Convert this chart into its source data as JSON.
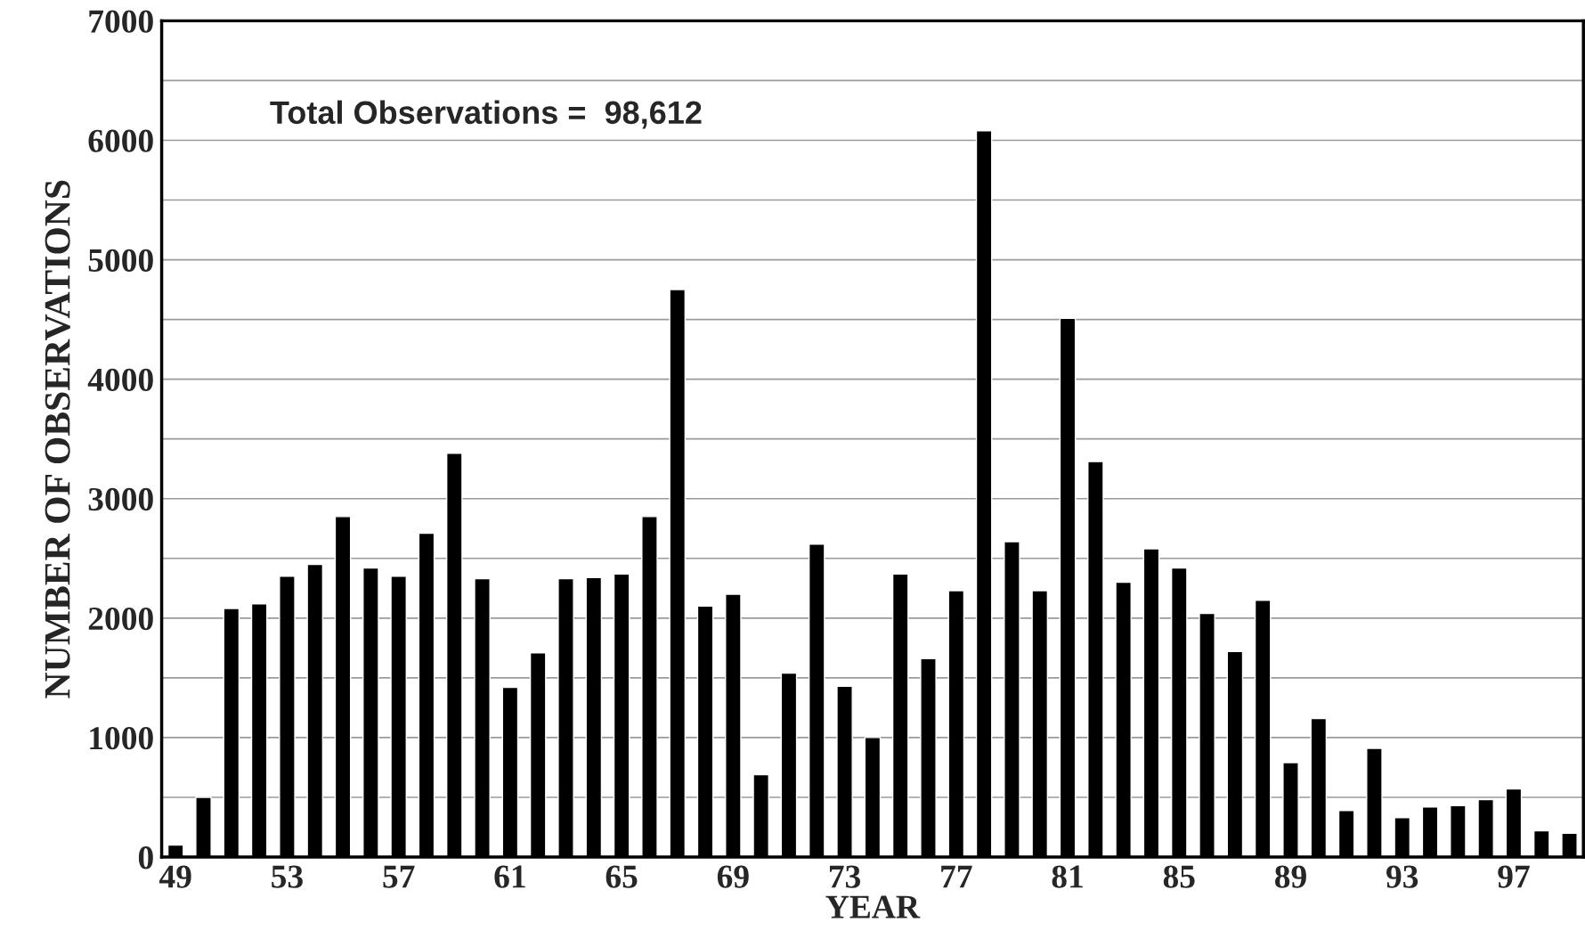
{
  "chart_data": {
    "type": "bar",
    "categories": [
      "49",
      null,
      null,
      null,
      "53",
      null,
      null,
      null,
      "57",
      null,
      null,
      null,
      "61",
      null,
      null,
      null,
      "65",
      null,
      null,
      null,
      "69",
      null,
      null,
      null,
      "73",
      null,
      null,
      null,
      "77",
      null,
      null,
      null,
      "81",
      null,
      null,
      null,
      "85",
      null,
      null,
      null,
      "89",
      null,
      null,
      null,
      "93",
      null,
      null,
      null,
      "97",
      null,
      null
    ],
    "values": [
      100,
      500,
      2080,
      2120,
      2350,
      2450,
      2850,
      2420,
      2350,
      2710,
      3380,
      2330,
      1420,
      1710,
      2330,
      2340,
      2370,
      2850,
      4750,
      2100,
      2200,
      690,
      1540,
      2620,
      1430,
      1000,
      2370,
      1660,
      2230,
      6080,
      2640,
      2230,
      4510,
      3310,
      2300,
      2580,
      2420,
      2040,
      1720,
      2150,
      790,
      1160,
      390,
      910,
      330,
      420,
      430,
      480,
      570,
      220,
      200
    ],
    "color": "#000000",
    "xlabel": "YEAR",
    "ylabel": "NUMBER OF OBSERVATIONS",
    "annotations": [
      "Total Observations =  98,612"
    ],
    "ylim": [
      0,
      7000
    ],
    "yticks": [
      0,
      {
        "value": 500,
        "label": null
      },
      1000,
      {
        "value": 1500,
        "label": null
      },
      2000,
      {
        "value": 2500,
        "label": null
      },
      3000,
      {
        "value": 3500,
        "label": null
      },
      4000,
      {
        "value": 4500,
        "label": null
      },
      5000,
      {
        "value": 5500,
        "label": null
      },
      6000,
      {
        "value": 6500,
        "label": null
      },
      7000
    ],
    "grid": "y",
    "legend": false
  }
}
